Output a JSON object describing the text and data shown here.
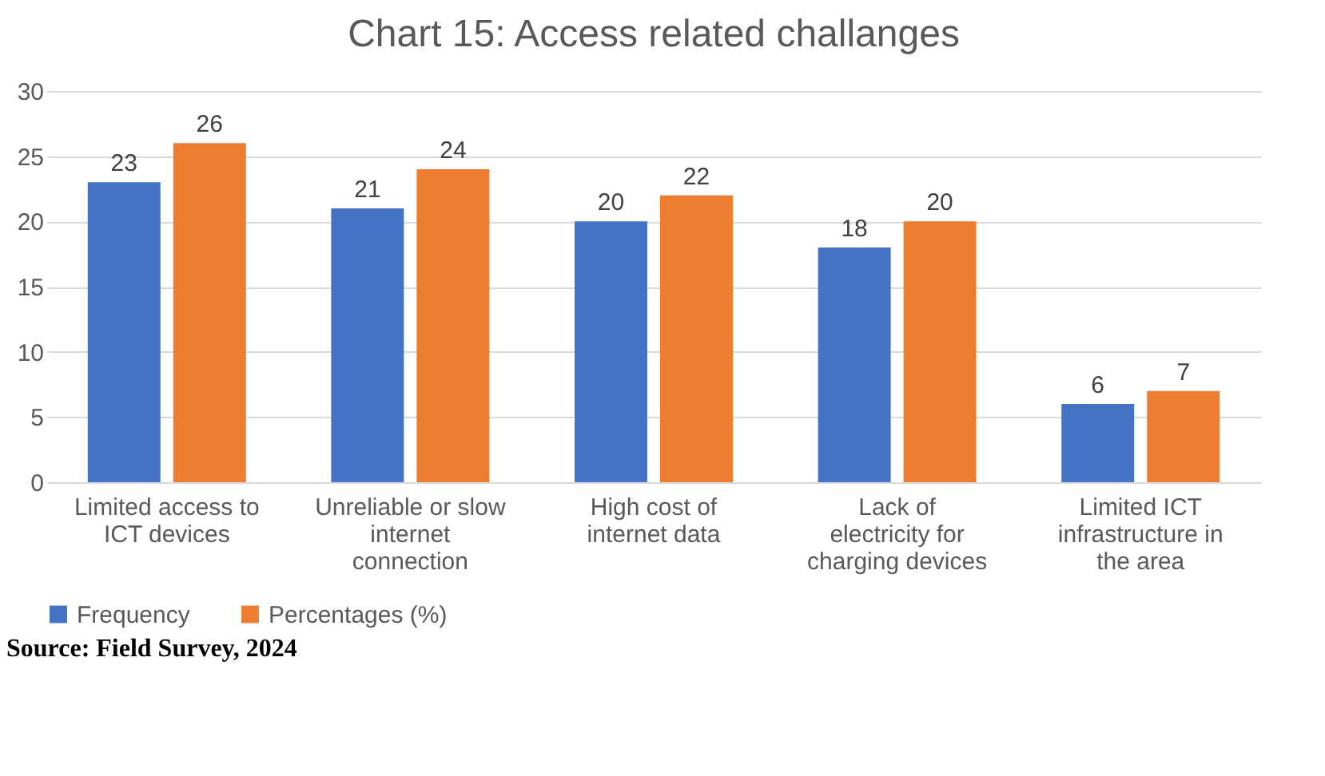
{
  "chart_data": {
    "type": "bar",
    "title": "Chart 15: Access related challanges",
    "categories": [
      "Limited access to ICT devices",
      "Unreliable or slow internet connection",
      "High cost of internet data",
      "Lack of electricity for charging devices",
      "Limited ICT infrastructure in the area"
    ],
    "series": [
      {
        "name": "Frequency",
        "color": "#4472c4",
        "values": [
          23,
          21,
          20,
          18,
          6
        ]
      },
      {
        "name": "Percentages (%)",
        "color": "#ed7d31",
        "values": [
          26,
          24,
          22,
          20,
          7
        ]
      }
    ],
    "ylim": [
      0,
      30
    ],
    "yticks": [
      0,
      5,
      10,
      15,
      20,
      25,
      30
    ],
    "grid": "y",
    "legend": "bottom",
    "data_labels": true,
    "annotations": [
      "Source: Field Survey, 2024"
    ]
  }
}
